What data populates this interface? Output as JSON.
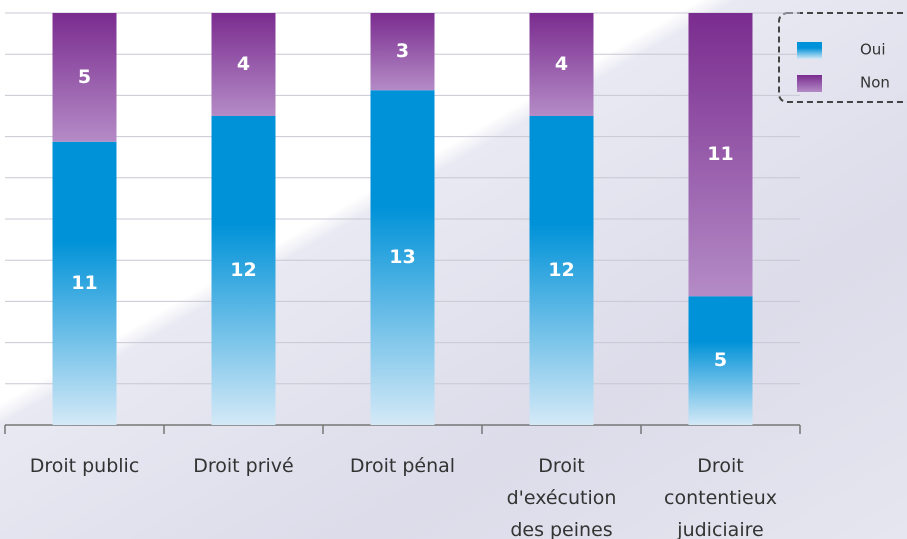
{
  "chart_data": {
    "type": "stacked_bar",
    "categories": [
      "Droit public",
      "Droit privé",
      "Droit pénal",
      "Droit\nd'exécution\ndes peines",
      "Droit\ncontentieux\njudiciaire"
    ],
    "series": [
      {
        "name": "Oui",
        "color": "#0092d8",
        "values": [
          11,
          12,
          13,
          12,
          5
        ]
      },
      {
        "name": "Non",
        "color": "#7a2c8f",
        "values": [
          5,
          4,
          3,
          4,
          11
        ]
      }
    ],
    "ylim": [
      0,
      16
    ],
    "yticks": [
      0,
      1.6,
      3.2,
      4.8,
      6.4,
      8,
      9.6,
      11.2,
      12.8,
      14.4,
      16
    ],
    "grid": true,
    "legend": "top-right"
  }
}
